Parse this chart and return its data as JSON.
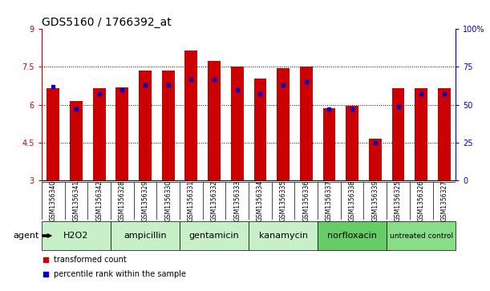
{
  "title": "GDS5160 / 1766392_at",
  "samples": [
    "GSM1356340",
    "GSM1356341",
    "GSM1356342",
    "GSM1356328",
    "GSM1356329",
    "GSM1356330",
    "GSM1356331",
    "GSM1356332",
    "GSM1356333",
    "GSM1356334",
    "GSM1356335",
    "GSM1356336",
    "GSM1356337",
    "GSM1356338",
    "GSM1356339",
    "GSM1356325",
    "GSM1356326",
    "GSM1356327"
  ],
  "transformed_count": [
    6.65,
    6.15,
    6.65,
    6.7,
    7.35,
    7.35,
    8.15,
    7.75,
    7.5,
    7.05,
    7.45,
    7.5,
    5.85,
    5.95,
    4.65,
    6.65,
    6.65,
    6.65
  ],
  "percentile_rank": [
    62,
    47,
    57,
    60,
    63,
    63,
    67,
    67,
    60,
    57,
    63,
    65,
    47,
    47,
    25,
    49,
    57,
    57
  ],
  "groups": [
    {
      "label": "H2O2",
      "start": 0,
      "end": 3,
      "color": "#c8f0c8"
    },
    {
      "label": "ampicillin",
      "start": 3,
      "end": 6,
      "color": "#c8f0c8"
    },
    {
      "label": "gentamicin",
      "start": 6,
      "end": 9,
      "color": "#c8f0c8"
    },
    {
      "label": "kanamycin",
      "start": 9,
      "end": 12,
      "color": "#c8f0c8"
    },
    {
      "label": "norfloxacin",
      "start": 12,
      "end": 15,
      "color": "#66cc66"
    },
    {
      "label": "untreated control",
      "start": 15,
      "end": 18,
      "color": "#88dd88"
    }
  ],
  "ylim": [
    3,
    9
  ],
  "yticks": [
    3,
    4.5,
    6,
    7.5,
    9
  ],
  "right_yticks": [
    0,
    25,
    50,
    75,
    100
  ],
  "bar_color": "#cc0000",
  "marker_color": "#0000cc",
  "background_color": "#ffffff",
  "grid_color": "#000000",
  "title_fontsize": 10,
  "tick_fontsize": 7,
  "group_fontsize": 8,
  "bar_width": 0.55,
  "legend_label_red": "transformed count",
  "legend_label_blue": "percentile rank within the sample",
  "agent_label": "agent",
  "xlabel_color": "#cc0000",
  "ylabel_right_color": "#0000cc"
}
